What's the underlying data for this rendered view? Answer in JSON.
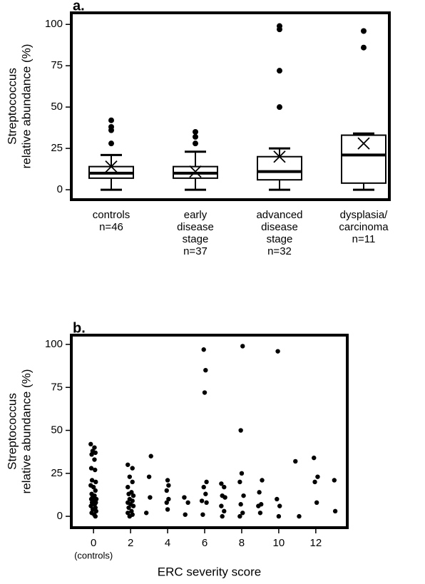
{
  "chart_data": [
    {
      "type": "box",
      "panel_label": "a.",
      "y_label": [
        "Streptococcus",
        "relative abundance (%)"
      ],
      "categories": [
        [
          "controls",
          "n=46"
        ],
        [
          "early",
          "disease",
          "stage",
          "n=37"
        ],
        [
          "advanced",
          "disease",
          "stage",
          "n=32"
        ],
        [
          "dysplasia/",
          "carcinoma",
          "n=11"
        ]
      ],
      "boxes": [
        {
          "whislo": 0,
          "q1": 7,
          "med": 10,
          "q3": 14,
          "whishi": 21,
          "mean": 14,
          "fliers": [
            42,
            38,
            36,
            28
          ]
        },
        {
          "whislo": 0,
          "q1": 7,
          "med": 10,
          "q3": 14,
          "whishi": 23,
          "mean": 11,
          "fliers": [
            35,
            32,
            28
          ]
        },
        {
          "whislo": 0,
          "q1": 6,
          "med": 11,
          "q3": 20,
          "whishi": 25,
          "mean": 20,
          "fliers": [
            50,
            72,
            97,
            99
          ]
        },
        {
          "whislo": 0,
          "q1": 4,
          "med": 21,
          "q3": 33,
          "whishi": 34,
          "mean": 28,
          "fliers": [
            86,
            96
          ]
        }
      ],
      "color": "#000000",
      "ylim": [
        -6,
        107
      ],
      "yticks": [
        0,
        25,
        50,
        75,
        100
      ]
    },
    {
      "type": "scatter",
      "panel_label": "b.",
      "y_label": [
        "Streptococcus",
        "relative abundance (%)"
      ],
      "x_label": "ERC severity score",
      "x_note": "(controls)",
      "x": [
        -0.15,
        0.05,
        -0.05,
        0.1,
        -0.1,
        0.05,
        -0.12,
        0.08,
        -0.08,
        0.12,
        -0.15,
        0,
        0.1,
        -0.1,
        0.05,
        -0.05,
        0.15,
        -0.12,
        0.02,
        0.12,
        -0.08,
        0.06,
        -0.14,
        0.1,
        -0.04,
        0.14,
        -0.1,
        0.04,
        0.1,
        1.85,
        2.1,
        1.95,
        2.1,
        1.85,
        2.05,
        1.9,
        2.15,
        1.95,
        2.1,
        1.85,
        2,
        2.15,
        1.9,
        2.05,
        1.85,
        2.1,
        1.95,
        3.1,
        3,
        3.05,
        2.85,
        4,
        4.05,
        3.95,
        4.05,
        3.95,
        4,
        4.9,
        5.1,
        4.95,
        5.95,
        6.05,
        6,
        6.1,
        5.95,
        6.05,
        5.85,
        6.1,
        5.9,
        6.9,
        7.05,
        6.95,
        7.1,
        6.9,
        7.05,
        6.95,
        8.05,
        7.95,
        8,
        7.9,
        8.1,
        7.95,
        8.05,
        7.9,
        9.1,
        8.95,
        9.05,
        8.9,
        9,
        9.95,
        9.9,
        10.05,
        10,
        10.9,
        11.1,
        11.9,
        12.1,
        11.95,
        12.05,
        13,
        13.05
      ],
      "y": [
        42,
        40,
        38,
        37,
        36,
        33,
        28,
        27,
        21,
        20,
        18,
        17,
        15,
        13,
        12,
        11,
        10,
        10,
        9,
        8,
        8,
        7,
        6,
        5,
        4,
        3,
        2,
        1,
        0,
        30,
        28,
        23,
        20,
        17,
        14,
        13,
        12,
        10,
        9,
        8,
        7,
        6,
        5,
        3,
        2,
        1,
        0,
        35,
        23,
        11,
        2,
        21,
        18,
        15,
        10,
        8,
        4,
        11,
        8,
        1,
        97,
        85,
        72,
        20,
        17,
        13,
        9,
        8,
        1,
        19,
        17,
        12,
        11,
        6,
        3,
        0,
        99,
        50,
        25,
        20,
        12,
        7,
        2,
        0,
        21,
        14,
        7,
        6,
        2,
        96,
        10,
        6,
        0,
        32,
        0,
        34,
        23,
        20,
        8,
        21,
        3
      ],
      "color": "#000000",
      "xlim": [
        -1.2,
        13.7
      ],
      "xticks": [
        0,
        2,
        4,
        6,
        8,
        10,
        12
      ],
      "ylim": [
        -6.6,
        105.4
      ],
      "yticks": [
        0,
        25,
        50,
        75,
        100
      ]
    }
  ]
}
